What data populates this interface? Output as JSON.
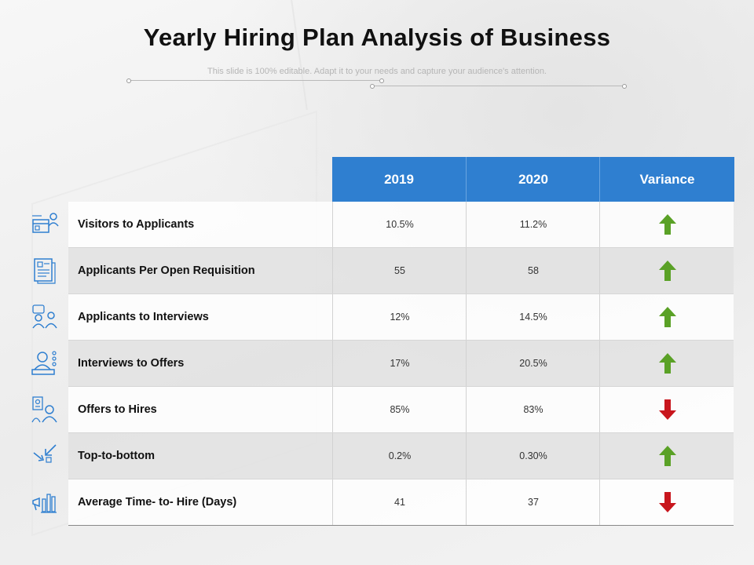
{
  "title": "Yearly Hiring Plan Analysis of Business",
  "subtitle": "This slide is 100% editable. Adapt it to your needs and capture your audience's attention.",
  "colors": {
    "header_bg": "#2f7fd0",
    "up": "#5aa126",
    "down": "#c8161d",
    "icon": "#2f7fd0"
  },
  "table": {
    "columns": [
      "2019",
      "2020",
      "Variance"
    ],
    "rows": [
      {
        "label": "Visitors to Applicants",
        "y2019": "10.5%",
        "y2020": "11.2%",
        "variance": "up",
        "icon": "web-visitor-icon"
      },
      {
        "label": "Applicants Per Open Requisition",
        "y2019": "55",
        "y2020": "58",
        "variance": "up",
        "icon": "resume-document-icon"
      },
      {
        "label": "Applicants to Interviews",
        "y2019": "12%",
        "y2020": "14.5%",
        "variance": "up",
        "icon": "interview-people-icon"
      },
      {
        "label": "Interviews to Offers",
        "y2019": "17%",
        "y2020": "20.5%",
        "variance": "up",
        "icon": "offer-desk-icon"
      },
      {
        "label": "Offers to Hires",
        "y2019": "85%",
        "y2020": "83%",
        "variance": "down",
        "icon": "hire-people-icon"
      },
      {
        "label": "Top-to-bottom",
        "y2019": "0.2%",
        "y2020": "0.30%",
        "variance": "up",
        "icon": "arrows-inward-icon"
      },
      {
        "label": "Average Time- to- Hire (Days)",
        "y2019": "41",
        "y2020": "37",
        "variance": "down",
        "icon": "megaphone-chart-icon"
      }
    ]
  }
}
